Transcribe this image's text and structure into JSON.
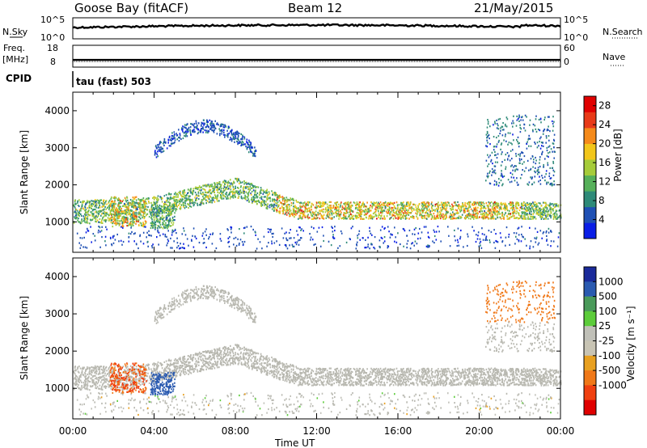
{
  "header": {
    "title": "Goose Bay (fitACF)",
    "beam": "Beam 12",
    "date": "21/May/2015"
  },
  "summary_panels": {
    "nsky_label": "N.Sky",
    "nsky_ticks": [
      "10^5",
      "10^0"
    ],
    "nsearch_label": "N.Search",
    "nsearch_ticks": [
      "10^5",
      "10^0"
    ],
    "freq_label_1": "Freq.",
    "freq_label_2": "[MHz]",
    "freq_ticks": [
      "18",
      "8"
    ],
    "nave_label": "Nave",
    "nave_ticks": [
      "60",
      "0"
    ],
    "cpid_label": "CPID",
    "cpid_value": "tau (fast) 503"
  },
  "colors": {
    "power_scale": [
      "#0a1ee6",
      "#1f50b4",
      "#2e8a78",
      "#56b05a",
      "#a6cc3a",
      "#f2c61a",
      "#f58a1a",
      "#e83a18",
      "#e00000"
    ],
    "velocity_scale": [
      "#1a2a9a",
      "#2a5ab0",
      "#4a9a5a",
      "#5ccc3a",
      "#c0c0b8",
      "#c8c4b4",
      "#e8a020",
      "#f07818",
      "#f04010",
      "#e00000"
    ],
    "ground_scatter": "#b8b8b0"
  },
  "chart_data": [
    {
      "type": "heatmap",
      "name": "power",
      "xlabel": "",
      "ylabel": "Slant Range [km]",
      "y_ticks": [
        "1000",
        "2000",
        "3000",
        "4000"
      ],
      "ylim": [
        180,
        4500
      ],
      "colorbar_label": "Power [dB]",
      "colorbar_ticks": [
        "4",
        "8",
        "12",
        "16",
        "20",
        "24",
        "28"
      ],
      "colorbar_range": [
        0,
        30
      ]
    },
    {
      "type": "heatmap",
      "name": "velocity",
      "xlabel": "Time UT",
      "ylabel": "Slant Range [km]",
      "x_ticks": [
        "00:00",
        "04:00",
        "08:00",
        "12:00",
        "16:00",
        "20:00",
        "00:00"
      ],
      "y_ticks": [
        "1000",
        "2000",
        "3000",
        "4000"
      ],
      "ylim": [
        180,
        4500
      ],
      "colorbar_label": "Velocity [m s⁻¹]",
      "colorbar_ticks": [
        "1000",
        "500",
        "100",
        "25",
        "-25",
        "-100",
        "-500",
        "-1000"
      ]
    }
  ]
}
